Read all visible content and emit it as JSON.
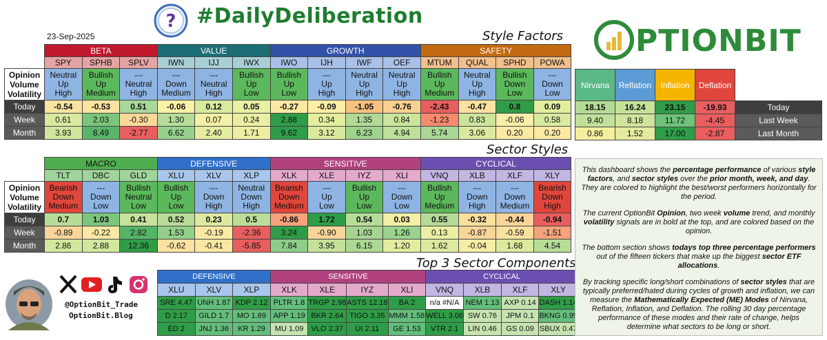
{
  "header": {
    "title": "#DailyDeliberation",
    "date": "23-Sep-2025",
    "brand": "OPTIONBIT"
  },
  "sections": {
    "style_factors": "Style Factors",
    "sector_styles": "Sector Styles",
    "top3": "Top 3 Sector Components"
  },
  "row_labels": {
    "opinion_header": [
      "Opinion",
      "Volume",
      "Volatility"
    ],
    "today": "Today",
    "week": "Week",
    "month": "Month"
  },
  "colors": {
    "green_dark": "#2e9e4a",
    "green": "#63be7b",
    "green_light": "#b7dfa6",
    "yellow": "#fff2a6",
    "orange": "#f7b96a",
    "red_light": "#f4a08a",
    "red": "#e06060"
  },
  "style_factors": {
    "groups": [
      {
        "name": "BETA",
        "color": "#c0182d",
        "text": "#ffffff",
        "tickers": [
          "SPY",
          "SPHB",
          "SPLV"
        ]
      },
      {
        "name": "VALUE",
        "color": "#1c6e74",
        "text": "#ffffff",
        "tickers": [
          "IWN",
          "IJJ",
          "IWX"
        ]
      },
      {
        "name": "GROWTH",
        "color": "#3451a8",
        "text": "#ffffff",
        "tickers": [
          "IWO",
          "IJH",
          "IWF",
          "OEF"
        ]
      },
      {
        "name": "SAFETY",
        "color": "#c26a12",
        "text": "#ffffff",
        "tickers": [
          "MTUM",
          "QUAL",
          "SPHD",
          "POWA"
        ]
      }
    ],
    "tick_colors": [
      "#e6a3a3",
      "#e6a3a3",
      "#e6a3a3",
      "#a9cfd6",
      "#a9cfd6",
      "#a9cfd6",
      "#a9c1e8",
      "#a9c1e8",
      "#a9c1e8",
      "#a9c1e8",
      "#f2c08d",
      "#f2c08d",
      "#f2c08d",
      "#f2c08d"
    ],
    "signals": [
      {
        "lines": [
          "Neutral",
          "Up",
          "High"
        ],
        "bg": "#8eb4e3"
      },
      {
        "lines": [
          "Bullish",
          "Up",
          "Medium"
        ],
        "bg": "#5cb85c"
      },
      {
        "lines": [
          "---",
          "Neutral",
          "High"
        ],
        "bg": "#8eb4e3"
      },
      {
        "lines": [
          "---",
          "Down",
          "Medium"
        ],
        "bg": "#8eb4e3"
      },
      {
        "lines": [
          "---",
          "Neutral",
          "High"
        ],
        "bg": "#8eb4e3"
      },
      {
        "lines": [
          "Bullish",
          "Up",
          "Low"
        ],
        "bg": "#5cb85c"
      },
      {
        "lines": [
          "Bullish",
          "Up",
          "Low"
        ],
        "bg": "#5cb85c"
      },
      {
        "lines": [
          "---",
          "Up",
          "High"
        ],
        "bg": "#8eb4e3"
      },
      {
        "lines": [
          "Neutral",
          "Up",
          "High"
        ],
        "bg": "#8eb4e3"
      },
      {
        "lines": [
          "Neutral",
          "Up",
          "High"
        ],
        "bg": "#8eb4e3"
      },
      {
        "lines": [
          "Bullish",
          "Up",
          "Medium"
        ],
        "bg": "#5cb85c"
      },
      {
        "lines": [
          "Neutral",
          "Up",
          "High"
        ],
        "bg": "#8eb4e3"
      },
      {
        "lines": [
          "Bullish",
          "Down",
          "Low"
        ],
        "bg": "#5cb85c"
      },
      {
        "lines": [
          "---",
          "Down",
          "Low"
        ],
        "bg": "#8eb4e3"
      }
    ],
    "today": [
      "-0.54",
      "-0.53",
      "0.51",
      "-0.06",
      "0.12",
      "0.05",
      "-0.27",
      "-0.09",
      "-1.05",
      "-0.76",
      "-2.43",
      "-0.47",
      "0.8",
      "0.09"
    ],
    "today_colors": [
      "#fbe3a1",
      "#fbe3a1",
      "#a9d99a",
      "#fdf0a7",
      "#d7ea9e",
      "#e9efa3",
      "#fde9a4",
      "#fdeea6",
      "#f7c17f",
      "#f8d190",
      "#e95e5e",
      "#fbe09f",
      "#2f9d47",
      "#e2ed9f"
    ],
    "week": [
      "0.61",
      "2.03",
      "-0.30",
      "1.30",
      "0.07",
      "0.24",
      "2.88",
      "0.34",
      "1.35",
      "0.84",
      "-1.23",
      "0.83",
      "-0.06",
      "0.58"
    ],
    "week_colors": [
      "#d8ea9f",
      "#7cc67b",
      "#fbd89a",
      "#b5dc98",
      "#f3f0a7",
      "#e9eea3",
      "#2f9d47",
      "#e4ee9f",
      "#b1da96",
      "#cbe59d",
      "#f58a6f",
      "#ccE59d",
      "#f7eea7",
      "#d9ea9f"
    ],
    "month": [
      "3.93",
      "8.49",
      "-2.77",
      "6.62",
      "2.40",
      "1.71",
      "9.62",
      "3.12",
      "6.23",
      "4.94",
      "5.74",
      "3.06",
      "0.20",
      "0.20"
    ],
    "month_colors": [
      "#cfe69c",
      "#5ab56a",
      "#e95e5e",
      "#96d08b",
      "#e4ec9f",
      "#ecefa3",
      "#2f9d47",
      "#d9e99e",
      "#9fd38e",
      "#bde09b",
      "#a9d795",
      "#dae99e",
      "#fbe9a4",
      "#fbe9a4"
    ]
  },
  "modes": {
    "headers": [
      {
        "name": "Nirvana",
        "color": "#5bb887"
      },
      {
        "name": "Reflation",
        "color": "#5b9bd5"
      },
      {
        "name": "Inflation",
        "color": "#f5b400"
      },
      {
        "name": "Deflation",
        "color": "#e0463c"
      }
    ],
    "today": [
      "18.15",
      "16.24",
      "23.15",
      "-19.93"
    ],
    "today_colors": [
      "#b4db95",
      "#c6e29a",
      "#2f9d47",
      "#e95e5e"
    ],
    "last_week": [
      "9.40",
      "8.18",
      "11.72",
      "-4.45"
    ],
    "last_week_colors": [
      "#c2e09a",
      "#d0e59c",
      "#6fc27a",
      "#e95e5e"
    ],
    "last_month": [
      "0.86",
      "1.52",
      "17.00",
      "-2.87"
    ],
    "last_month_colors": [
      "#f3ef9e",
      "#e4ea9e",
      "#2f9d47",
      "#e95e5e"
    ],
    "row_labels": [
      "Today",
      "Last Week",
      "Last Month"
    ]
  },
  "sector_styles": {
    "groups": [
      {
        "name": "MACRO",
        "color": "#4fae4f",
        "text": "#111111",
        "tickers": [
          "TLT",
          "DBC",
          "GLD"
        ]
      },
      {
        "name": "DEFENSIVE",
        "color": "#2f6fc9",
        "text": "#ffffff",
        "tickers": [
          "XLU",
          "XLV",
          "XLP"
        ]
      },
      {
        "name": "SENSITIVE",
        "color": "#b0417e",
        "text": "#ffffff",
        "tickers": [
          "XLK",
          "XLE",
          "IYZ",
          "XLI"
        ]
      },
      {
        "name": "CYCLICAL",
        "color": "#6b4fb0",
        "text": "#ffffff",
        "tickers": [
          "VNQ",
          "XLB",
          "XLF",
          "XLY"
        ]
      }
    ],
    "tick_colors": [
      "#9fd49a",
      "#9fd49a",
      "#9fd49a",
      "#a9c6ec",
      "#a9c6ec",
      "#a9c6ec",
      "#e3aacb",
      "#e3aacb",
      "#e3aacb",
      "#e3aacb",
      "#c3b6e3",
      "#c3b6e3",
      "#c3b6e3",
      "#c3b6e3"
    ],
    "signals": [
      {
        "lines": [
          "Bearish",
          "Down",
          "Medium"
        ],
        "bg": "#e0463c"
      },
      {
        "lines": [
          "---",
          "Down",
          "Low"
        ],
        "bg": "#8eb4e3"
      },
      {
        "lines": [
          "Bullish",
          "Neutral",
          "Low"
        ],
        "bg": "#5cb85c"
      },
      {
        "lines": [
          "Bullish",
          "Up",
          "Low"
        ],
        "bg": "#5cb85c"
      },
      {
        "lines": [
          "---",
          "Down",
          "High"
        ],
        "bg": "#8eb4e3"
      },
      {
        "lines": [
          "Neutral",
          "Down",
          "High"
        ],
        "bg": "#8eb4e3"
      },
      {
        "lines": [
          "Bearish",
          "Down",
          "Medium"
        ],
        "bg": "#e0463c"
      },
      {
        "lines": [
          "---",
          "Up",
          "Low"
        ],
        "bg": "#8eb4e3"
      },
      {
        "lines": [
          "Bullish",
          "Up",
          "Low"
        ],
        "bg": "#5cb85c"
      },
      {
        "lines": [
          "---",
          "Down",
          "Low"
        ],
        "bg": "#8eb4e3"
      },
      {
        "lines": [
          "Bullish",
          "Up",
          "Medium"
        ],
        "bg": "#5cb85c"
      },
      {
        "lines": [
          "---",
          "Down",
          "High"
        ],
        "bg": "#8eb4e3"
      },
      {
        "lines": [
          "---",
          "Down",
          "Medium"
        ],
        "bg": "#8eb4e3"
      },
      {
        "lines": [
          "Bearish",
          "Down",
          "High"
        ],
        "bg": "#e0463c"
      }
    ],
    "today": [
      "0.7",
      "1.03",
      "0.41",
      "0.52",
      "0.23",
      "0.5",
      "-0.86",
      "1.72",
      "0.54",
      "0.03",
      "0.55",
      "-0.32",
      "-0.44",
      "-0.94"
    ],
    "today_colors": [
      "#b7dc97",
      "#7dc57c",
      "#c7e29b",
      "#b9dc98",
      "#dde99f",
      "#bcdd98",
      "#f6a37c",
      "#2f9d47",
      "#b7dc97",
      "#f2efa6",
      "#b5db97",
      "#fbdf9d",
      "#fad49a",
      "#e95e5e"
    ],
    "week": [
      "-0.89",
      "-0.22",
      "2.82",
      "1.53",
      "-0.19",
      "-2.36",
      "3.24",
      "-0.90",
      "1.03",
      "1.26",
      "0.13",
      "-0.87",
      "-0.59",
      "-1.51"
    ],
    "week_colors": [
      "#fad59a",
      "#fbe8a3",
      "#56b466",
      "#93cf8a",
      "#fbe9a4",
      "#e95e5e",
      "#2f9d47",
      "#fad59a",
      "#a6d592",
      "#9ad28e",
      "#ebefa3",
      "#fad59a",
      "#fbe0a0",
      "#f5a37d"
    ],
    "month": [
      "2.86",
      "2.88",
      "12.36",
      "-0.62",
      "-0.41",
      "-5.85",
      "7.84",
      "3.95",
      "6.15",
      "1.20",
      "1.62",
      "-0.04",
      "1.68",
      "4.54"
    ],
    "month_colors": [
      "#d3e79d",
      "#d3e79d",
      "#2f9d47",
      "#fbe2a1",
      "#fbe7a3",
      "#e95e5e",
      "#8ecd88",
      "#c6e19a",
      "#acd893",
      "#e3ec9f",
      "#dde99f",
      "#f5eea6",
      "#dce99e",
      "#b8dd98"
    ]
  },
  "top3": {
    "groups": [
      {
        "name": "DEFENSIVE",
        "color": "#2f6fc9",
        "text": "#ffffff",
        "tickers": [
          "XLU",
          "XLV",
          "XLP"
        ],
        "tick_color": "#a9c6ec"
      },
      {
        "name": "SENSITIVE",
        "color": "#b0417e",
        "text": "#ffffff",
        "tickers": [
          "XLK",
          "XLE",
          "IYZ",
          "XLI"
        ],
        "tick_color": "#e3aacb"
      },
      {
        "name": "CYCLICAL",
        "color": "#6b4fb0",
        "text": "#ffffff",
        "tickers": [
          "VNQ",
          "XLB",
          "XLF",
          "XLY"
        ],
        "tick_color": "#c3b6e3"
      }
    ],
    "rows": [
      [
        "SRE 4.47",
        "UNH 1.87",
        "KDP 2.12",
        "PLTR 1.8",
        "TRGP 2.98",
        "ASTS 12.18",
        "BA 2",
        "n/a #N/A",
        "NEM 1.13",
        "AXP 0.14",
        "DASH 1.14"
      ],
      [
        "D 2.17",
        "GILD 1.7",
        "MO 1.69",
        "APP 1.19",
        "BKR 2.64",
        "TIGO 3.35",
        "MMM 1.58",
        "WELL 3.06",
        "SW 0.76",
        "JPM 0.1",
        "BKNG 0.95"
      ],
      [
        "ED 2",
        "JNJ 1.36",
        "KR 1.29",
        "MU 1.09",
        "VLO 2.37",
        "UI 2.11",
        "GE 1.53",
        "VTR 2.1",
        "LIN 0.46",
        "GS 0.09",
        "SBUX 0.47"
      ]
    ],
    "colors": [
      [
        "#2f9d47",
        "#63be7b",
        "#2f9d47",
        "#63be7b",
        "#2f9d47",
        "#2f9d47",
        "#2f9d47",
        "#ffffff",
        "#63be7b",
        "#c6e3b0",
        "#2f9d47"
      ],
      [
        "#2f9d47",
        "#63be7b",
        "#63be7b",
        "#63be7b",
        "#2f9d47",
        "#2f9d47",
        "#63be7b",
        "#2f9d47",
        "#c6e3b0",
        "#c6e3b0",
        "#63be7b"
      ],
      [
        "#2f9d47",
        "#63be7b",
        "#63be7b",
        "#c6e3b0",
        "#2f9d47",
        "#2f9d47",
        "#63be7b",
        "#2f9d47",
        "#c6e3b0",
        "#c6e3b0",
        "#c6e3b0"
      ]
    ]
  },
  "description": {
    "p1_parts": [
      "This dashboard shows the ",
      "percentage performance",
      " of various ",
      "style factors",
      ", and ",
      "sector styles",
      " over the ",
      "prior month, week, and day",
      ". They are colored to highlight the best/worst performers horizontally for the period."
    ],
    "p2_parts": [
      "The current OptionBit ",
      "Opinion",
      ", two week ",
      "volume",
      " trend, and monthly ",
      "volatility",
      " signals are in bold at the top, and are colored based on the opinion."
    ],
    "p3_parts": [
      "The bottom section shows ",
      "todays top three percentage performers",
      " out of the fifteen tickers that make up the biggest ",
      "sector ETF allocations",
      "."
    ],
    "p4_parts": [
      "By tracking specific long/short combinations of ",
      "sector styles",
      " that are typically preferred/hated during cycles of growth and inflation, we can measure the ",
      "Mathematically Expected (ME) Modes",
      " of Nirvana, Reflation, Inflation, and Deflation. The rolling 30 day percentage performance of these modes and their rate of change, helps determine what sectors to be long or short."
    ]
  },
  "social": {
    "handle": "@OptionBit_Trade",
    "blog": "OptionBit.Blog",
    "icons": [
      "x-icon",
      "youtube-icon",
      "tiktok-icon",
      "instagram-icon"
    ]
  }
}
